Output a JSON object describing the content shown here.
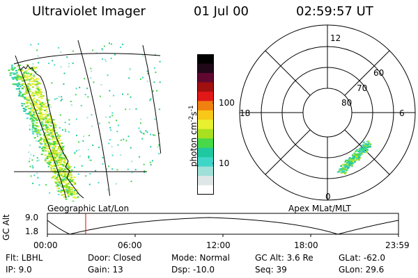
{
  "header": {
    "title": "Ultraviolet Imager",
    "date": "01 Jul 00",
    "time": "02:59:57 UT"
  },
  "left_panel": {
    "caption": "Geographic Lat/Lon"
  },
  "colorbar": {
    "unit_label": "photon cm",
    "unit_sup1": "-2",
    "unit_s": "s",
    "unit_sup2": "-1",
    "ticks": [
      "100",
      "10"
    ]
  },
  "polar_panel": {
    "caption": "Apex MLat/MLT",
    "mlt_labels": {
      "top": "12",
      "left": "18",
      "right": "6",
      "bottom": "0"
    },
    "lat_labels": [
      "60",
      "70",
      "80"
    ]
  },
  "altitude_plot": {
    "ylabel": "GC Alt",
    "yticks": [
      "9.0",
      "1.8"
    ],
    "xticks": [
      "00:00",
      "06:00",
      "12:00",
      "18:00",
      "23:59"
    ]
  },
  "info": {
    "row1": {
      "flt": "Flt: LBHL",
      "door": "Door: Closed",
      "mode": "Mode: Normal",
      "gcalt": "GC Alt: 3.6 Re",
      "glat": "GLat: -62.0"
    },
    "row2": {
      "ip": "IP:  9.0",
      "gain": "Gain: 13",
      "dsp": "Dsp:  -10.0",
      "seq": "Seq: 39",
      "glon": "GLon:  29.6"
    }
  },
  "colors": {
    "scale": [
      "#ffffff",
      "#dfe6e8",
      "#9fe0d8",
      "#3fd6c8",
      "#20c8a0",
      "#48d848",
      "#a8e020",
      "#e8f030",
      "#f8c818",
      "#f08010",
      "#e01818",
      "#a01010",
      "#600830",
      "#200818",
      "#000000"
    ],
    "marker": "#dd0000"
  }
}
